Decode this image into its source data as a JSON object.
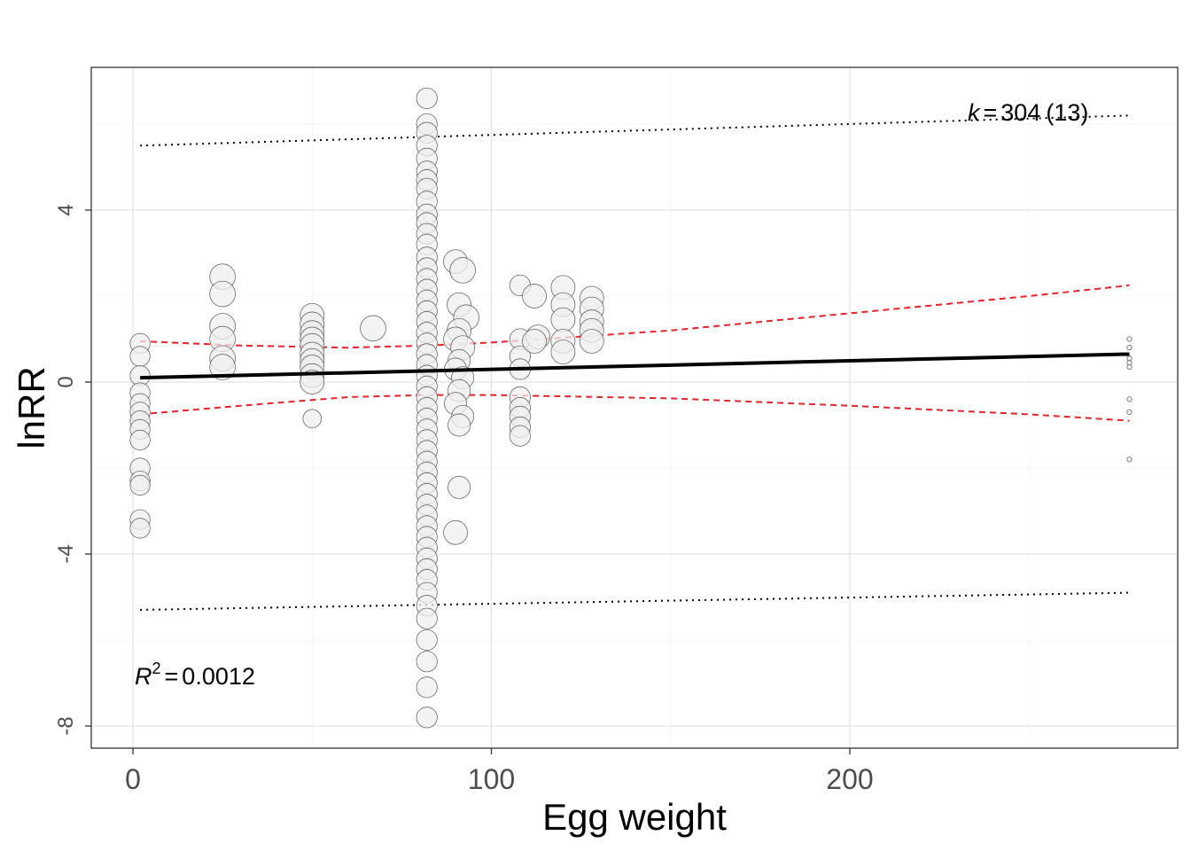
{
  "chart_data": {
    "type": "scatter",
    "title": "",
    "xlabel": "Egg weight",
    "ylabel": "lnRR",
    "xlim": [
      -12,
      292
    ],
    "ylim": [
      -8.6,
      7.3
    ],
    "xticks": [
      0,
      100,
      200
    ],
    "yticks": [
      -8,
      -4,
      0,
      4
    ],
    "grid": true,
    "annotations": {
      "r2_symbol": "R",
      "r2_exponent": "2",
      "r2_value": "0.0012",
      "k_symbol": "k",
      "k_value": "304",
      "k_count": "(13)"
    },
    "colors": {
      "point_fill": "#efefef",
      "point_stroke": "#555555",
      "fit_line": "#000000",
      "confidence_band": "#e8222b",
      "prediction_band": "#000000"
    },
    "fit_line": {
      "x": [
        2,
        278
      ],
      "y": [
        0.1,
        0.65
      ]
    },
    "confidence_interval": {
      "lower": {
        "x": [
          2,
          30,
          60,
          82,
          100,
          150,
          200,
          250,
          278
        ],
        "y": [
          -0.75,
          -0.55,
          -0.35,
          -0.3,
          -0.3,
          -0.38,
          -0.55,
          -0.75,
          -0.9
        ]
      },
      "upper": {
        "x": [
          2,
          30,
          60,
          82,
          100,
          150,
          200,
          250,
          278
        ],
        "y": [
          0.95,
          0.85,
          0.8,
          0.85,
          0.92,
          1.2,
          1.6,
          2.0,
          2.25
        ]
      }
    },
    "prediction_interval": {
      "lower": {
        "x": [
          2,
          278
        ],
        "y": [
          -5.3,
          -4.9
        ]
      },
      "upper": {
        "x": [
          2,
          278
        ],
        "y": [
          5.5,
          6.2
        ]
      }
    },
    "points": [
      {
        "x": 2,
        "y": 0.9,
        "r": 2.5
      },
      {
        "x": 2,
        "y": 0.6,
        "r": 2.5
      },
      {
        "x": 2,
        "y": 0.15,
        "r": 2.5
      },
      {
        "x": 2,
        "y": -0.25,
        "r": 2.5
      },
      {
        "x": 2,
        "y": -0.5,
        "r": 2.5
      },
      {
        "x": 2,
        "y": -0.7,
        "r": 2.5
      },
      {
        "x": 2,
        "y": -0.9,
        "r": 2.5
      },
      {
        "x": 2,
        "y": -1.1,
        "r": 2.5
      },
      {
        "x": 2,
        "y": -1.35,
        "r": 2.5
      },
      {
        "x": 2,
        "y": -2.0,
        "r": 2.5
      },
      {
        "x": 2,
        "y": -2.3,
        "r": 2.5
      },
      {
        "x": 2,
        "y": -2.4,
        "r": 2.5
      },
      {
        "x": 2,
        "y": -3.2,
        "r": 2.5
      },
      {
        "x": 2,
        "y": -3.4,
        "r": 2.5
      },
      {
        "x": 25,
        "y": 2.45,
        "r": 3.2
      },
      {
        "x": 25,
        "y": 2.05,
        "r": 3.2
      },
      {
        "x": 25,
        "y": 1.3,
        "r": 3.2
      },
      {
        "x": 25,
        "y": 1.0,
        "r": 3.2
      },
      {
        "x": 25,
        "y": 0.55,
        "r": 3.2
      },
      {
        "x": 25,
        "y": 0.35,
        "r": 3.2
      },
      {
        "x": 50,
        "y": 1.55,
        "r": 3
      },
      {
        "x": 50,
        "y": 1.35,
        "r": 3
      },
      {
        "x": 50,
        "y": 1.15,
        "r": 3
      },
      {
        "x": 50,
        "y": 1.0,
        "r": 3
      },
      {
        "x": 50,
        "y": 0.85,
        "r": 3
      },
      {
        "x": 50,
        "y": 0.65,
        "r": 3
      },
      {
        "x": 50,
        "y": 0.5,
        "r": 3
      },
      {
        "x": 50,
        "y": 0.35,
        "r": 3
      },
      {
        "x": 50,
        "y": 0.15,
        "r": 3
      },
      {
        "x": 50,
        "y": 0.0,
        "r": 3
      },
      {
        "x": 50,
        "y": -0.85,
        "r": 2.3
      },
      {
        "x": 67,
        "y": 1.25,
        "r": 3.2
      },
      {
        "x": 82,
        "y": 6.6,
        "r": 2.6
      },
      {
        "x": 82,
        "y": 6.0,
        "r": 2.6
      },
      {
        "x": 82,
        "y": 5.8,
        "r": 2.6
      },
      {
        "x": 82,
        "y": 5.5,
        "r": 2.6
      },
      {
        "x": 82,
        "y": 5.2,
        "r": 2.6
      },
      {
        "x": 82,
        "y": 4.9,
        "r": 2.6
      },
      {
        "x": 82,
        "y": 4.7,
        "r": 2.6
      },
      {
        "x": 82,
        "y": 4.5,
        "r": 2.6
      },
      {
        "x": 82,
        "y": 4.2,
        "r": 2.6
      },
      {
        "x": 82,
        "y": 3.9,
        "r": 2.6
      },
      {
        "x": 82,
        "y": 3.7,
        "r": 2.6
      },
      {
        "x": 82,
        "y": 3.45,
        "r": 2.6
      },
      {
        "x": 82,
        "y": 3.2,
        "r": 2.6
      },
      {
        "x": 82,
        "y": 2.9,
        "r": 2.6
      },
      {
        "x": 82,
        "y": 2.65,
        "r": 2.6
      },
      {
        "x": 82,
        "y": 2.4,
        "r": 2.6
      },
      {
        "x": 82,
        "y": 2.15,
        "r": 2.6
      },
      {
        "x": 82,
        "y": 1.9,
        "r": 2.6
      },
      {
        "x": 82,
        "y": 1.65,
        "r": 2.6
      },
      {
        "x": 82,
        "y": 1.4,
        "r": 2.6
      },
      {
        "x": 82,
        "y": 1.15,
        "r": 2.6
      },
      {
        "x": 82,
        "y": 0.9,
        "r": 2.6
      },
      {
        "x": 82,
        "y": 0.65,
        "r": 2.6
      },
      {
        "x": 82,
        "y": 0.4,
        "r": 2.6
      },
      {
        "x": 82,
        "y": 0.15,
        "r": 2.6
      },
      {
        "x": 82,
        "y": -0.1,
        "r": 2.6
      },
      {
        "x": 82,
        "y": -0.35,
        "r": 2.6
      },
      {
        "x": 82,
        "y": -0.6,
        "r": 2.6
      },
      {
        "x": 82,
        "y": -0.85,
        "r": 2.6
      },
      {
        "x": 82,
        "y": -1.1,
        "r": 2.6
      },
      {
        "x": 82,
        "y": -1.35,
        "r": 2.6
      },
      {
        "x": 82,
        "y": -1.6,
        "r": 2.6
      },
      {
        "x": 82,
        "y": -1.85,
        "r": 2.6
      },
      {
        "x": 82,
        "y": -2.1,
        "r": 2.6
      },
      {
        "x": 82,
        "y": -2.35,
        "r": 2.6
      },
      {
        "x": 82,
        "y": -2.6,
        "r": 2.6
      },
      {
        "x": 82,
        "y": -2.85,
        "r": 2.6
      },
      {
        "x": 82,
        "y": -3.1,
        "r": 2.6
      },
      {
        "x": 82,
        "y": -3.35,
        "r": 2.6
      },
      {
        "x": 82,
        "y": -3.6,
        "r": 2.6
      },
      {
        "x": 82,
        "y": -3.85,
        "r": 2.6
      },
      {
        "x": 82,
        "y": -4.1,
        "r": 2.6
      },
      {
        "x": 82,
        "y": -4.35,
        "r": 2.6
      },
      {
        "x": 82,
        "y": -4.6,
        "r": 2.6
      },
      {
        "x": 82,
        "y": -4.9,
        "r": 2.6
      },
      {
        "x": 82,
        "y": -5.2,
        "r": 2.6
      },
      {
        "x": 82,
        "y": -5.5,
        "r": 2.6
      },
      {
        "x": 82,
        "y": -6.0,
        "r": 2.6
      },
      {
        "x": 82,
        "y": -6.5,
        "r": 2.6
      },
      {
        "x": 82,
        "y": -7.1,
        "r": 2.6
      },
      {
        "x": 82,
        "y": -7.8,
        "r": 2.6
      },
      {
        "x": 90,
        "y": 2.8,
        "r": 3
      },
      {
        "x": 92,
        "y": 2.6,
        "r": 3.2
      },
      {
        "x": 91,
        "y": 1.8,
        "r": 3
      },
      {
        "x": 93,
        "y": 1.5,
        "r": 3.2
      },
      {
        "x": 91,
        "y": 1.2,
        "r": 3
      },
      {
        "x": 90,
        "y": 1.0,
        "r": 3
      },
      {
        "x": 92,
        "y": 0.8,
        "r": 3
      },
      {
        "x": 91,
        "y": 0.5,
        "r": 2.8
      },
      {
        "x": 90,
        "y": 0.3,
        "r": 2.8
      },
      {
        "x": 92,
        "y": 0.1,
        "r": 2.8
      },
      {
        "x": 91,
        "y": -0.2,
        "r": 2.8
      },
      {
        "x": 90,
        "y": -0.5,
        "r": 2.8
      },
      {
        "x": 92,
        "y": -0.8,
        "r": 2.8
      },
      {
        "x": 91,
        "y": -1.0,
        "r": 2.8
      },
      {
        "x": 91,
        "y": -2.45,
        "r": 2.8
      },
      {
        "x": 90,
        "y": -3.5,
        "r": 3
      },
      {
        "x": 108,
        "y": 2.25,
        "r": 2.6
      },
      {
        "x": 108,
        "y": 1.0,
        "r": 2.6
      },
      {
        "x": 108,
        "y": 0.6,
        "r": 2.6
      },
      {
        "x": 108,
        "y": 0.3,
        "r": 2.6
      },
      {
        "x": 108,
        "y": -0.35,
        "r": 2.6
      },
      {
        "x": 108,
        "y": -0.6,
        "r": 2.6
      },
      {
        "x": 108,
        "y": -0.8,
        "r": 2.6
      },
      {
        "x": 108,
        "y": -1.05,
        "r": 2.6
      },
      {
        "x": 108,
        "y": -1.25,
        "r": 2.6
      },
      {
        "x": 112,
        "y": 2.0,
        "r": 3
      },
      {
        "x": 113,
        "y": 1.05,
        "r": 3
      },
      {
        "x": 112,
        "y": 0.95,
        "r": 3
      },
      {
        "x": 120,
        "y": 2.2,
        "r": 3
      },
      {
        "x": 120,
        "y": 1.8,
        "r": 3
      },
      {
        "x": 120,
        "y": 1.45,
        "r": 3
      },
      {
        "x": 120,
        "y": 0.95,
        "r": 3
      },
      {
        "x": 120,
        "y": 0.7,
        "r": 3
      },
      {
        "x": 128,
        "y": 1.95,
        "r": 3
      },
      {
        "x": 128,
        "y": 1.7,
        "r": 3
      },
      {
        "x": 128,
        "y": 1.4,
        "r": 3
      },
      {
        "x": 128,
        "y": 1.2,
        "r": 3
      },
      {
        "x": 128,
        "y": 0.95,
        "r": 3
      },
      {
        "x": 278,
        "y": 1.0,
        "r": 0.6
      },
      {
        "x": 278,
        "y": 0.8,
        "r": 0.6
      },
      {
        "x": 278,
        "y": 0.55,
        "r": 0.6
      },
      {
        "x": 278,
        "y": 0.45,
        "r": 0.6
      },
      {
        "x": 278,
        "y": 0.35,
        "r": 0.6
      },
      {
        "x": 278,
        "y": -0.4,
        "r": 0.6
      },
      {
        "x": 278,
        "y": -0.7,
        "r": 0.6
      },
      {
        "x": 278,
        "y": -1.8,
        "r": 0.6
      }
    ]
  }
}
